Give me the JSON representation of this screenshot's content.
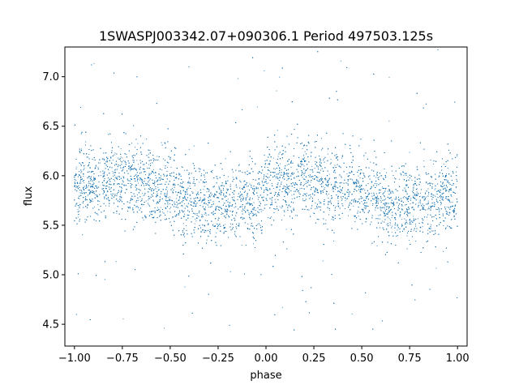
{
  "chart_data": {
    "type": "scatter",
    "title": "1SWASPJ003342.07+090306.1 Period 497503.125s",
    "xlabel": "phase",
    "ylabel": "flux",
    "xlim": [
      -1.05,
      1.05
    ],
    "ylim": [
      4.28,
      7.3
    ],
    "xticks": [
      -1.0,
      -0.75,
      -0.5,
      -0.25,
      0.0,
      0.25,
      0.5,
      0.75,
      1.0
    ],
    "xtick_labels": [
      "−1.00",
      "−0.75",
      "−0.50",
      "−0.25",
      "0.00",
      "0.25",
      "0.50",
      "0.75",
      "1.00"
    ],
    "yticks": [
      4.5,
      5.0,
      5.5,
      6.0,
      6.5,
      7.0
    ],
    "ytick_labels": [
      "4.5",
      "5.0",
      "5.5",
      "6.0",
      "6.5",
      "7.0"
    ],
    "grid": false,
    "marker_color": "#1f77b4",
    "series": [
      {
        "x_range": [
          -1.0,
          1.0
        ],
        "y_range": [
          4.4,
          7.28
        ],
        "n_points": 12000,
        "phase_mean_curve": {
          "phase": [
            0.0,
            0.05,
            0.1,
            0.15,
            0.2,
            0.25,
            0.3,
            0.35,
            0.4,
            0.45,
            0.5,
            0.55,
            0.6,
            0.65,
            0.7,
            0.75,
            0.8,
            0.85,
            0.9,
            0.95,
            1.0
          ],
          "flux": [
            5.83,
            5.9,
            5.93,
            5.95,
            5.97,
            5.96,
            5.95,
            5.93,
            5.9,
            5.87,
            5.84,
            5.78,
            5.75,
            5.72,
            5.7,
            5.72,
            5.73,
            5.72,
            5.76,
            5.8,
            5.83
          ]
        },
        "spread_sd": 0.19
      }
    ]
  }
}
